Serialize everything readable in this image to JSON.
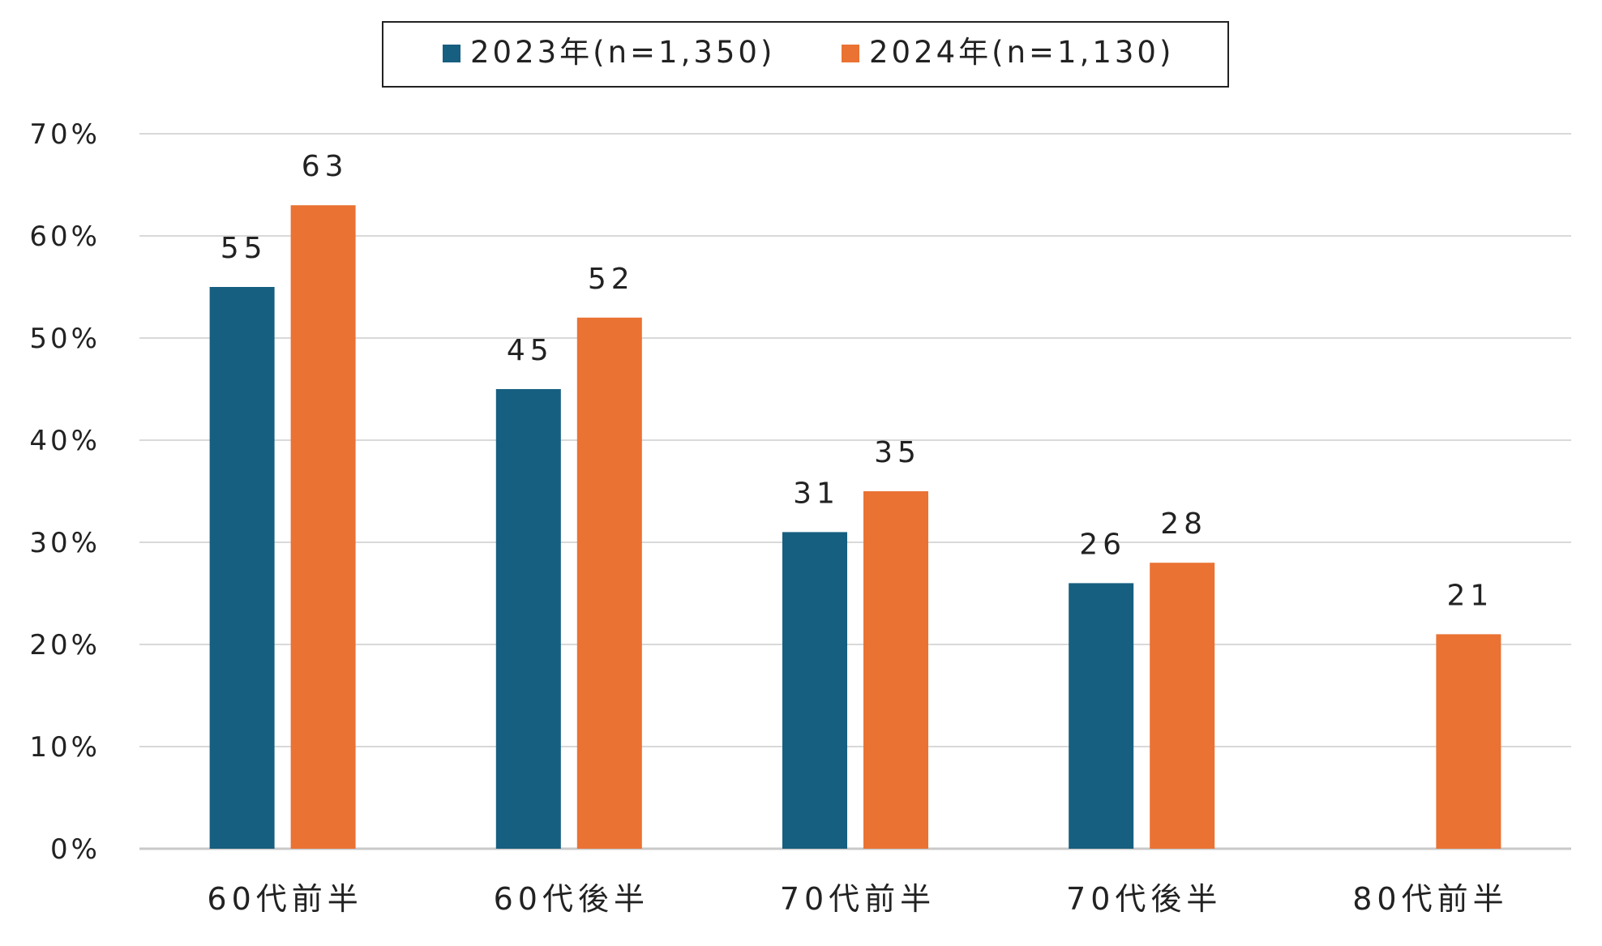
{
  "chart_data": {
    "type": "bar",
    "categories": [
      "60代前半",
      "60代後半",
      "70代前半",
      "70代後半",
      "80代前半"
    ],
    "series": [
      {
        "name": "2023年(n=1,350)",
        "color": "#165f80",
        "values": [
          55,
          45,
          31,
          26,
          null
        ]
      },
      {
        "name": "2024年(n=1,130)",
        "color": "#ea7233",
        "values": [
          63,
          52,
          35,
          28,
          21
        ]
      }
    ],
    "yticks": [
      0,
      10,
      20,
      30,
      40,
      50,
      60,
      70
    ],
    "ytick_labels": [
      "0%",
      "10%",
      "20%",
      "30%",
      "40%",
      "50%",
      "60%",
      "70%"
    ],
    "ylim": [
      0,
      70
    ],
    "grid": true,
    "legend_position": "top-center",
    "title": "",
    "xlabel": "",
    "ylabel": ""
  }
}
